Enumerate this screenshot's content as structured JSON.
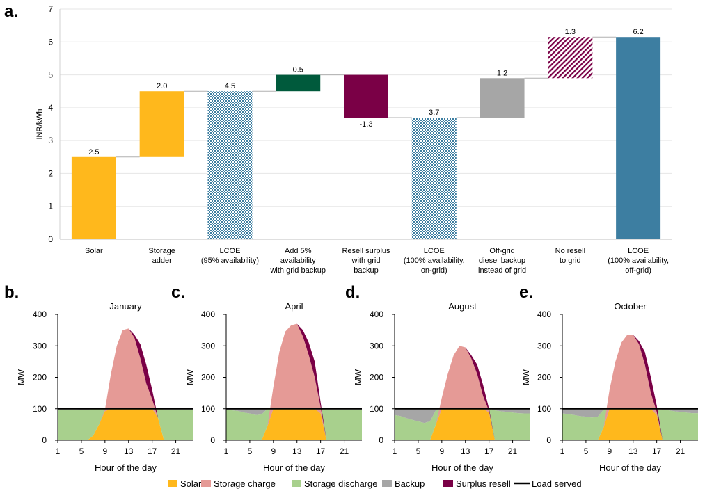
{
  "colors": {
    "solar": "#FFB81C",
    "storage_charge": "#E59A96",
    "storage_discharge": "#A8D08D",
    "backup": "#A6A6A6",
    "surplus_resell": "#7A0046",
    "load_served": "#000000",
    "grid_backup": "#005A3C",
    "lcoe_offgrid": "#3D7EA1",
    "lcoe_pattern": "#3D7EA1",
    "noresell_pattern": "#7A0046"
  },
  "panels": {
    "a": "a.",
    "b": "b.",
    "c": "c.",
    "d": "d.",
    "e": "e."
  },
  "chart_data": [
    {
      "type": "bar",
      "subtype": "waterfall",
      "ylabel": "INR/kWh",
      "ylim": [
        0,
        7
      ],
      "yticks": [
        0,
        1,
        2,
        3,
        4,
        5,
        6,
        7
      ],
      "categories": [
        [
          "Solar"
        ],
        [
          "Storage",
          "adder"
        ],
        [
          "LCOE",
          "(95% availability)"
        ],
        [
          "Add 5%",
          "availability",
          "with grid backup"
        ],
        [
          "Resell surplus",
          "with grid",
          "backup"
        ],
        [
          "LCOE",
          "(100% availability,",
          "on-grid)"
        ],
        [
          "Off-grid",
          "diesel backup",
          "instead of grid"
        ],
        [
          "No resell",
          "to grid"
        ],
        [
          "LCOE",
          "(100% availability,",
          "off-grid)"
        ]
      ],
      "bars": [
        {
          "base": 0,
          "top": 2.5,
          "label": "2.5",
          "fill": "solar"
        },
        {
          "base": 2.5,
          "top": 4.5,
          "label": "2.0",
          "fill": "solar"
        },
        {
          "base": 0,
          "top": 4.5,
          "label": "4.5",
          "fill": "lcoe_pattern",
          "pattern": "checker"
        },
        {
          "base": 4.5,
          "top": 5.0,
          "label": "0.5",
          "fill": "grid_backup"
        },
        {
          "base": 3.7,
          "top": 5.0,
          "label": "-1.3",
          "fill": "surplus_resell",
          "label_below": true
        },
        {
          "base": 0,
          "top": 3.7,
          "label": "3.7",
          "fill": "lcoe_pattern",
          "pattern": "checker"
        },
        {
          "base": 3.7,
          "top": 4.9,
          "label": "1.2",
          "fill": "backup"
        },
        {
          "base": 4.9,
          "top": 6.15,
          "label": "1.3",
          "fill": "noresell_pattern",
          "pattern": "diag"
        },
        {
          "base": 0,
          "top": 6.15,
          "label": "6.2",
          "fill": "lcoe_offgrid"
        }
      ]
    },
    {
      "type": "area",
      "title": "January",
      "xlabel": "Hour of the day",
      "ylabel": "MW",
      "ylim": [
        0,
        400
      ],
      "yticks": [
        0,
        100,
        200,
        300,
        400
      ],
      "xticks": [
        1,
        5,
        9,
        13,
        17,
        21
      ],
      "load": 100,
      "solar": [
        0,
        0,
        0,
        0,
        0,
        0,
        15,
        50,
        92,
        100,
        100,
        100,
        100,
        100,
        100,
        100,
        100,
        70,
        0,
        0,
        0,
        0,
        0,
        0
      ],
      "storage_charge": [
        0,
        0,
        0,
        0,
        0,
        0,
        0,
        0,
        5,
        110,
        200,
        250,
        255,
        225,
        160,
        80,
        30,
        0,
        0,
        0,
        0,
        0,
        0,
        0
      ],
      "surplus_resell": [
        0,
        0,
        0,
        0,
        0,
        0,
        0,
        0,
        0,
        0,
        0,
        0,
        0,
        10,
        45,
        60,
        30,
        0,
        0,
        0,
        0,
        0,
        0,
        0
      ],
      "storage_discharge": [
        98,
        98,
        98,
        98,
        97,
        96,
        85,
        50,
        8,
        0,
        0,
        0,
        0,
        0,
        0,
        0,
        0,
        30,
        98,
        98,
        98,
        98,
        98,
        98
      ],
      "backup": [
        2,
        2,
        2,
        2,
        3,
        4,
        0,
        0,
        0,
        0,
        0,
        0,
        0,
        0,
        0,
        0,
        0,
        0,
        2,
        2,
        2,
        2,
        2,
        2
      ]
    },
    {
      "type": "area",
      "title": "April",
      "xlabel": "Hour of the day",
      "ylabel": "MW",
      "ylim": [
        0,
        400
      ],
      "yticks": [
        0,
        100,
        200,
        300,
        400
      ],
      "xticks": [
        1,
        5,
        9,
        13,
        17,
        21
      ],
      "load": 100,
      "solar": [
        0,
        0,
        0,
        0,
        0,
        0,
        0,
        45,
        100,
        100,
        100,
        100,
        100,
        100,
        100,
        100,
        85,
        0,
        0,
        0,
        0,
        0,
        0,
        0
      ],
      "storage_charge": [
        0,
        0,
        0,
        0,
        0,
        0,
        0,
        0,
        70,
        180,
        245,
        265,
        270,
        230,
        170,
        100,
        20,
        0,
        0,
        0,
        0,
        0,
        0,
        0
      ],
      "surplus_resell": [
        0,
        0,
        0,
        0,
        0,
        0,
        0,
        0,
        0,
        0,
        0,
        0,
        0,
        20,
        40,
        50,
        15,
        0,
        0,
        0,
        0,
        0,
        0,
        0
      ],
      "storage_discharge": [
        97,
        95,
        93,
        88,
        85,
        80,
        82,
        55,
        0,
        0,
        0,
        0,
        0,
        0,
        0,
        0,
        15,
        98,
        98,
        98,
        98,
        98,
        98,
        98
      ],
      "backup": [
        3,
        5,
        7,
        12,
        15,
        20,
        18,
        0,
        0,
        0,
        0,
        0,
        0,
        0,
        0,
        0,
        0,
        2,
        2,
        2,
        2,
        2,
        2,
        2
      ]
    },
    {
      "type": "area",
      "title": "August",
      "xlabel": "Hour of the day",
      "ylabel": "MW",
      "ylim": [
        0,
        400
      ],
      "yticks": [
        0,
        100,
        200,
        300,
        400
      ],
      "xticks": [
        1,
        5,
        9,
        13,
        17,
        21
      ],
      "load": 100,
      "solar": [
        0,
        0,
        0,
        0,
        0,
        0,
        0,
        50,
        100,
        100,
        100,
        100,
        100,
        100,
        100,
        100,
        88,
        0,
        0,
        0,
        0,
        0,
        0,
        0
      ],
      "storage_charge": [
        0,
        0,
        0,
        0,
        0,
        0,
        0,
        0,
        35,
        110,
        170,
        200,
        195,
        160,
        110,
        40,
        5,
        0,
        0,
        0,
        0,
        0,
        0,
        0
      ],
      "surplus_resell": [
        0,
        0,
        0,
        0,
        0,
        0,
        0,
        0,
        0,
        0,
        0,
        0,
        0,
        10,
        30,
        35,
        7,
        0,
        0,
        0,
        0,
        0,
        0,
        0
      ],
      "storage_discharge": [
        80,
        77,
        70,
        65,
        60,
        55,
        60,
        45,
        0,
        0,
        0,
        0,
        0,
        0,
        0,
        0,
        12,
        95,
        92,
        90,
        88,
        86,
        85,
        85
      ],
      "backup": [
        20,
        23,
        30,
        35,
        40,
        45,
        40,
        5,
        0,
        0,
        0,
        0,
        0,
        0,
        0,
        0,
        0,
        5,
        8,
        10,
        12,
        14,
        15,
        15
      ]
    },
    {
      "type": "area",
      "title": "October",
      "xlabel": "Hour of the day",
      "ylabel": "MW",
      "ylim": [
        0,
        400
      ],
      "yticks": [
        0,
        100,
        200,
        300,
        400
      ],
      "xticks": [
        1,
        5,
        9,
        13,
        17,
        21
      ],
      "load": 100,
      "solar": [
        0,
        0,
        0,
        0,
        0,
        0,
        0,
        40,
        100,
        100,
        100,
        100,
        100,
        100,
        100,
        100,
        80,
        0,
        0,
        0,
        0,
        0,
        0,
        0
      ],
      "storage_charge": [
        0,
        0,
        0,
        0,
        0,
        0,
        0,
        0,
        60,
        150,
        210,
        235,
        235,
        205,
        140,
        50,
        10,
        0,
        0,
        0,
        0,
        0,
        0,
        0
      ],
      "surplus_resell": [
        0,
        0,
        0,
        0,
        0,
        0,
        0,
        0,
        0,
        0,
        0,
        0,
        0,
        10,
        40,
        50,
        20,
        0,
        0,
        0,
        0,
        0,
        0,
        0
      ],
      "storage_discharge": [
        85,
        83,
        80,
        77,
        75,
        72,
        75,
        57,
        0,
        0,
        0,
        0,
        0,
        0,
        0,
        0,
        20,
        97,
        95,
        92,
        90,
        88,
        86,
        86
      ],
      "backup": [
        15,
        17,
        20,
        23,
        25,
        28,
        25,
        3,
        0,
        0,
        0,
        0,
        0,
        0,
        0,
        0,
        0,
        3,
        5,
        8,
        10,
        12,
        14,
        14
      ]
    }
  ],
  "legend": [
    {
      "key": "solar",
      "label": "Solar",
      "kind": "box"
    },
    {
      "key": "storage_charge",
      "label": "Storage charge",
      "kind": "box"
    },
    {
      "key": "storage_discharge",
      "label": "Storage discharge",
      "kind": "box"
    },
    {
      "key": "backup",
      "label": "Backup",
      "kind": "box"
    },
    {
      "key": "surplus_resell",
      "label": "Surplus resell",
      "kind": "box"
    },
    {
      "key": "load_served",
      "label": "Load served",
      "kind": "line"
    }
  ]
}
